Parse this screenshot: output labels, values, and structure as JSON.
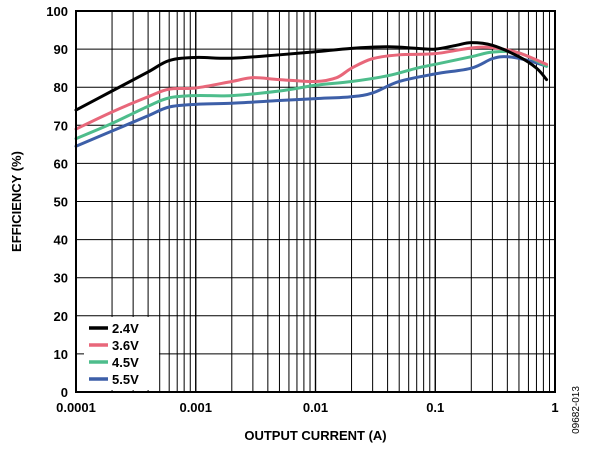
{
  "chart_data": {
    "type": "line",
    "xlabel": "OUTPUT CURRENT (A)",
    "ylabel": "EFFICIENCY (%)",
    "x_scale": "log",
    "xlim": [
      0.0001,
      1
    ],
    "ylim": [
      0,
      100
    ],
    "x_ticks": [
      "0.0001",
      "0.001",
      "0.01",
      "0.1",
      "1"
    ],
    "y_ticks": [
      "0",
      "10",
      "20",
      "30",
      "40",
      "50",
      "60",
      "70",
      "80",
      "90",
      "100"
    ],
    "grid": true,
    "legend_position": "bottom-left",
    "series": [
      {
        "name": "2.4V",
        "color": "#000000",
        "points": [
          [
            0.0001,
            74
          ],
          [
            0.0002,
            79
          ],
          [
            0.0004,
            84
          ],
          [
            0.0006,
            87
          ],
          [
            0.001,
            87.8
          ],
          [
            0.002,
            87.6
          ],
          [
            0.005,
            88.5
          ],
          [
            0.01,
            89.3
          ],
          [
            0.02,
            90.2
          ],
          [
            0.04,
            90.6
          ],
          [
            0.07,
            90.2
          ],
          [
            0.1,
            90
          ],
          [
            0.15,
            91
          ],
          [
            0.2,
            91.7
          ],
          [
            0.3,
            91
          ],
          [
            0.5,
            88
          ],
          [
            0.7,
            85
          ],
          [
            0.85,
            82
          ]
        ]
      },
      {
        "name": "3.6V",
        "color": "#e8677a",
        "points": [
          [
            0.0001,
            69
          ],
          [
            0.0002,
            73.5
          ],
          [
            0.0004,
            77.5
          ],
          [
            0.0006,
            79.5
          ],
          [
            0.001,
            79.8
          ],
          [
            0.002,
            81.5
          ],
          [
            0.003,
            82.5
          ],
          [
            0.005,
            82
          ],
          [
            0.01,
            81.5
          ],
          [
            0.015,
            82.5
          ],
          [
            0.02,
            85
          ],
          [
            0.03,
            87.5
          ],
          [
            0.05,
            88.5
          ],
          [
            0.1,
            88.8
          ],
          [
            0.2,
            90.3
          ],
          [
            0.3,
            90.4
          ],
          [
            0.5,
            89
          ],
          [
            0.85,
            86
          ]
        ]
      },
      {
        "name": "4.5V",
        "color": "#4ebd8c",
        "points": [
          [
            0.0001,
            66.5
          ],
          [
            0.0002,
            70.5
          ],
          [
            0.0004,
            75
          ],
          [
            0.0006,
            77.2
          ],
          [
            0.001,
            77.8
          ],
          [
            0.002,
            77.8
          ],
          [
            0.005,
            79
          ],
          [
            0.01,
            80.5
          ],
          [
            0.02,
            81.5
          ],
          [
            0.04,
            83
          ],
          [
            0.07,
            85
          ],
          [
            0.1,
            86
          ],
          [
            0.2,
            88
          ],
          [
            0.3,
            89.2
          ],
          [
            0.5,
            89
          ],
          [
            0.85,
            85.5
          ]
        ]
      },
      {
        "name": "5.5V",
        "color": "#3d5fa8",
        "points": [
          [
            0.0001,
            64.5
          ],
          [
            0.0002,
            68.5
          ],
          [
            0.0004,
            72.5
          ],
          [
            0.0006,
            74.8
          ],
          [
            0.001,
            75.5
          ],
          [
            0.002,
            75.8
          ],
          [
            0.005,
            76.5
          ],
          [
            0.01,
            77
          ],
          [
            0.02,
            77.5
          ],
          [
            0.03,
            78.5
          ],
          [
            0.05,
            81.5
          ],
          [
            0.1,
            83.5
          ],
          [
            0.2,
            85
          ],
          [
            0.3,
            87.5
          ],
          [
            0.4,
            88
          ],
          [
            0.6,
            87
          ],
          [
            0.85,
            85.5
          ]
        ]
      }
    ],
    "figure_id": "09682-013"
  }
}
